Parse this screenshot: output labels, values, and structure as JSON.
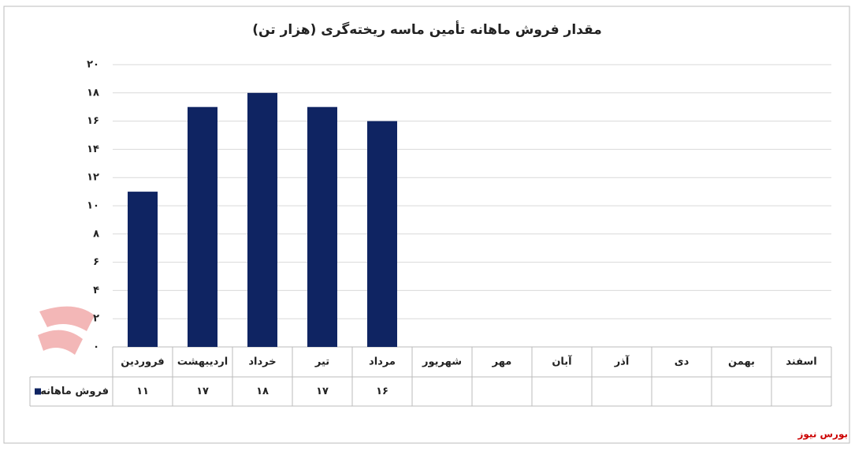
{
  "chart_data": {
    "type": "bar",
    "title": "مقدار فروش ماهانه تأمین ماسه ریخته‌گری (هزار تن)",
    "categories": [
      "فروردین",
      "اردیبهشت",
      "خرداد",
      "تیر",
      "مرداد",
      "شهریور",
      "مهر",
      "آبان",
      "آذر",
      "دی",
      "بهمن",
      "اسفند"
    ],
    "series": [
      {
        "name": "فروش ماهانه",
        "color": "#0f2462",
        "values": [
          11,
          17,
          18,
          17,
          16,
          null,
          null,
          null,
          null,
          null,
          null,
          null
        ],
        "value_labels": [
          "۱۱",
          "۱۷",
          "۱۸",
          "۱۷",
          "۱۶",
          null,
          null,
          null,
          null,
          null,
          null,
          null
        ]
      }
    ],
    "ylim": [
      0,
      20
    ],
    "yticks": [
      {
        "value": 0,
        "label": "۰"
      },
      {
        "value": 2,
        "label": "۲"
      },
      {
        "value": 4,
        "label": "۴"
      },
      {
        "value": 6,
        "label": "۶"
      },
      {
        "value": 8,
        "label": "۸"
      },
      {
        "value": 10,
        "label": "۱۰"
      },
      {
        "value": 12,
        "label": "۱۲"
      },
      {
        "value": 14,
        "label": "۱۴"
      },
      {
        "value": 16,
        "label": "۱۶"
      },
      {
        "value": 18,
        "label": "۱۸"
      },
      {
        "value": 20,
        "label": "۲۰"
      }
    ],
    "grid": true
  },
  "footer": {
    "text": "بورس نیوز"
  }
}
